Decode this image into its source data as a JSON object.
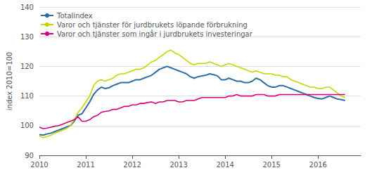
{
  "chart_data": {
    "type": "line",
    "ylabel": "index 2010=100",
    "x": [
      2010,
      2010.0833333333,
      2010.1666666667,
      2010.25,
      2010.3333333333,
      2010.4166666667,
      2010.5,
      2010.5833333333,
      2010.6666666667,
      2010.75,
      2010.8333333333,
      2010.9166666667,
      2011,
      2011.0833333333,
      2011.1666666667,
      2011.25,
      2011.3333333333,
      2011.4166666667,
      2011.5,
      2011.5833333333,
      2011.6666666667,
      2011.75,
      2011.8333333333,
      2011.9166666667,
      2012,
      2012.0833333333,
      2012.1666666667,
      2012.25,
      2012.3333333333,
      2012.4166666667,
      2012.5,
      2012.5833333333,
      2012.6666666667,
      2012.75,
      2012.8333333333,
      2012.9166666667,
      2013,
      2013.0833333333,
      2013.1666666667,
      2013.25,
      2013.3333333333,
      2013.4166666667,
      2013.5,
      2013.5833333333,
      2013.6666666667,
      2013.75,
      2013.8333333333,
      2013.9166666667,
      2014,
      2014.0833333333,
      2014.1666666667,
      2014.25,
      2014.3333333333,
      2014.4166666667,
      2014.5,
      2014.5833333333,
      2014.6666666667,
      2014.75,
      2014.8333333333,
      2014.9166666667,
      2015,
      2015.0833333333,
      2015.1666666667,
      2015.25,
      2015.3333333333,
      2015.4166666667,
      2015.5,
      2015.5833333333,
      2015.6666666667,
      2015.75,
      2015.8333333333,
      2015.9166666667,
      2016,
      2016.0833333333,
      2016.1666666667,
      2016.25,
      2016.3333333333,
      2016.4166666667,
      2016.5,
      2016.5833333333
    ],
    "series": [
      {
        "name": "Totalindex",
        "color": "#2e6da4",
        "values": [
          97.0,
          96.8,
          97.2,
          97.5,
          98.0,
          98.5,
          99.0,
          99.5,
          100.0,
          101.5,
          103.5,
          104.0,
          106.0,
          108.0,
          110.5,
          112.0,
          113.0,
          112.5,
          112.8,
          113.5,
          114.0,
          114.5,
          114.5,
          114.5,
          115.0,
          115.5,
          115.5,
          116.0,
          116.5,
          117.0,
          118.0,
          119.0,
          119.5,
          120.0,
          119.5,
          119.0,
          118.5,
          118.0,
          117.5,
          116.5,
          116.0,
          116.5,
          116.8,
          117.0,
          117.5,
          117.2,
          116.8,
          115.5,
          115.5,
          116.0,
          115.5,
          115.0,
          115.0,
          114.5,
          114.5,
          115.0,
          116.0,
          115.5,
          114.5,
          113.5,
          113.0,
          113.0,
          113.5,
          113.5,
          113.0,
          112.5,
          112.0,
          111.5,
          111.0,
          110.5,
          110.0,
          109.5,
          109.2,
          109.0,
          109.5,
          110.0,
          109.5,
          109.0,
          108.8,
          108.5
        ]
      },
      {
        "name": "Varor och tjänster för jurdbrukets löpande förbrukning",
        "color": "#c8d400",
        "values": [
          96.5,
          96.0,
          96.3,
          96.8,
          97.5,
          98.0,
          98.5,
          99.0,
          100.0,
          102.0,
          104.5,
          106.0,
          108.0,
          110.0,
          113.5,
          115.0,
          115.5,
          115.0,
          115.5,
          116.0,
          117.0,
          117.5,
          117.5,
          118.0,
          118.5,
          119.0,
          119.0,
          119.5,
          120.5,
          121.5,
          122.0,
          123.0,
          124.0,
          125.0,
          125.5,
          124.5,
          124.0,
          123.0,
          122.0,
          121.0,
          120.5,
          121.0,
          121.0,
          121.0,
          121.5,
          121.0,
          120.5,
          120.0,
          120.5,
          121.0,
          120.5,
          120.0,
          119.5,
          119.0,
          118.5,
          118.0,
          118.5,
          118.0,
          117.5,
          117.5,
          117.5,
          117.0,
          117.0,
          116.5,
          116.5,
          115.5,
          115.0,
          114.5,
          114.0,
          113.5,
          113.0,
          113.0,
          112.5,
          112.5,
          113.0,
          113.0,
          112.0,
          111.0,
          110.0,
          109.5
        ]
      },
      {
        "name": "Varor och tjänster som ingår i jurdbrukets investeringar",
        "color": "#d4007a",
        "values": [
          99.5,
          99.0,
          99.2,
          99.5,
          99.8,
          100.0,
          100.5,
          101.0,
          101.5,
          102.0,
          103.0,
          101.5,
          101.5,
          102.0,
          103.0,
          103.5,
          104.5,
          104.8,
          105.0,
          105.5,
          105.5,
          106.0,
          106.5,
          106.5,
          107.0,
          107.0,
          107.5,
          107.5,
          107.8,
          108.0,
          107.5,
          108.0,
          108.0,
          108.5,
          108.5,
          108.5,
          108.0,
          108.0,
          108.5,
          108.5,
          108.5,
          109.0,
          109.5,
          109.5,
          109.5,
          109.5,
          109.5,
          109.5,
          109.5,
          110.0,
          110.0,
          110.5,
          110.0,
          110.0,
          110.0,
          110.0,
          110.5,
          110.5,
          110.5,
          110.0,
          110.0,
          110.0,
          110.5,
          110.5,
          110.5,
          110.5,
          110.5,
          110.5,
          110.5,
          110.5,
          110.5,
          110.5,
          110.5,
          110.5,
          110.5,
          110.5,
          110.5,
          110.5,
          110.5,
          110.5
        ]
      }
    ],
    "xlim": [
      2010.0,
      2016.92
    ],
    "xticks": [
      2010,
      2011,
      2012,
      2013,
      2014,
      2015,
      2016
    ],
    "ylim": [
      90,
      140
    ],
    "yticks": [
      90,
      100,
      110,
      120,
      130,
      140
    ],
    "grid": true,
    "legend": "upper left"
  }
}
